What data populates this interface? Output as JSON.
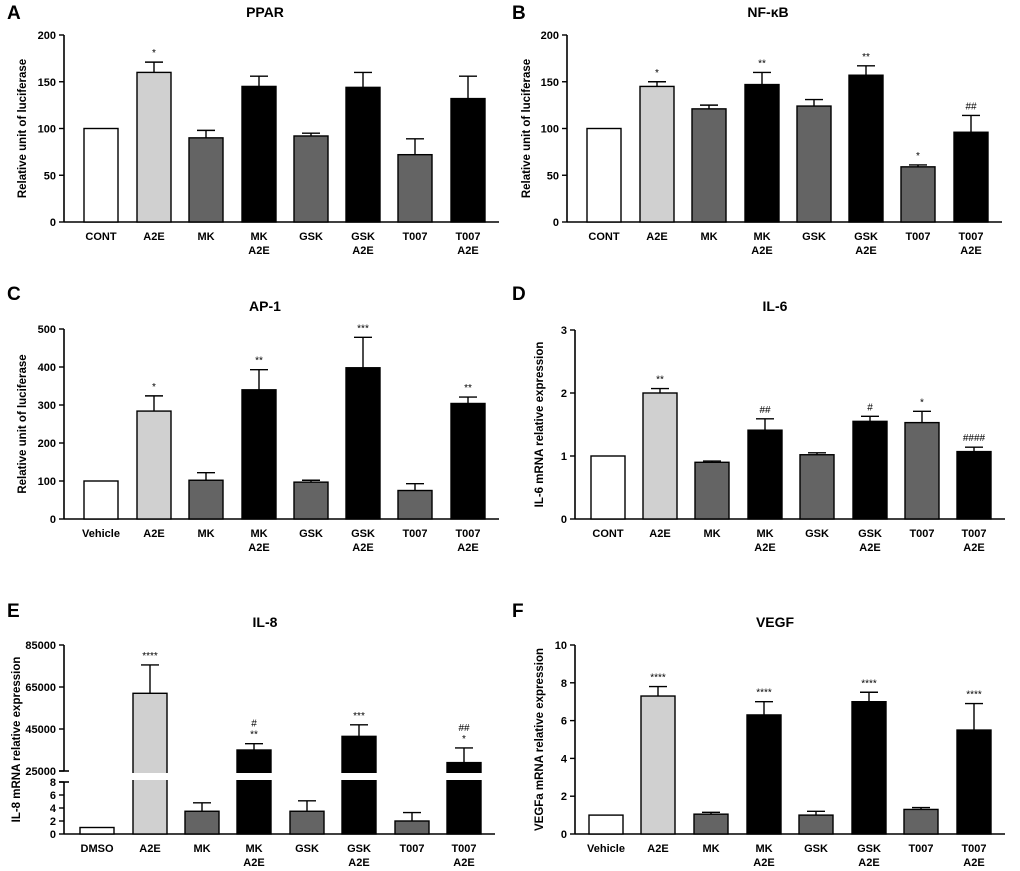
{
  "chart_data": [
    {
      "panel": "A",
      "type": "bar",
      "title": "PPAR",
      "ylabel": "Relative unit of luciferase",
      "ylim": [
        0,
        200
      ],
      "yticks": [
        0,
        50,
        100,
        150,
        200
      ],
      "categories": [
        "CONT",
        "A2E",
        "MK",
        "MK\nA2E",
        "GSK",
        "GSK\nA2E",
        "T007",
        "T007\nA2E"
      ],
      "values": [
        100,
        160,
        90,
        145,
        92,
        144,
        72,
        132
      ],
      "errors": [
        0,
        11,
        8,
        11,
        3,
        16,
        17,
        24
      ],
      "annotations": [
        "",
        "*",
        "",
        "",
        "",
        "",
        "",
        ""
      ],
      "colors": [
        "#ffffff",
        "#d0d0d0",
        "#646464",
        "#000000",
        "#646464",
        "#000000",
        "#646464",
        "#000000"
      ]
    },
    {
      "panel": "B",
      "type": "bar",
      "title": "NF-κB",
      "ylabel": "Relative unit of luciferase",
      "ylim": [
        0,
        200
      ],
      "yticks": [
        0,
        50,
        100,
        150,
        200
      ],
      "categories": [
        "CONT",
        "A2E",
        "MK",
        "MK\nA2E",
        "GSK",
        "GSK\nA2E",
        "T007",
        "T007\nA2E"
      ],
      "values": [
        100,
        145,
        121,
        147,
        124,
        157,
        59,
        96
      ],
      "errors": [
        0,
        5,
        4,
        13,
        7,
        10,
        2,
        18
      ],
      "annotations": [
        "",
        "*",
        "",
        "**",
        "",
        "**",
        "*",
        "##"
      ],
      "colors": [
        "#ffffff",
        "#d0d0d0",
        "#646464",
        "#000000",
        "#646464",
        "#000000",
        "#646464",
        "#000000"
      ]
    },
    {
      "panel": "C",
      "type": "bar",
      "title": "AP-1",
      "ylabel": "Relative unit of luciferase",
      "ylim": [
        0,
        500
      ],
      "yticks": [
        0,
        100,
        200,
        300,
        400,
        500
      ],
      "categories": [
        "Vehicle",
        "A2E",
        "MK",
        "MK\nA2E",
        "GSK",
        "GSK\nA2E",
        "T007",
        "T007\nA2E"
      ],
      "values": [
        100,
        284,
        102,
        340,
        97,
        398,
        75,
        304
      ],
      "errors": [
        0,
        40,
        20,
        53,
        5,
        80,
        18,
        17
      ],
      "annotations": [
        "",
        "*",
        "",
        "**",
        "",
        "***",
        "",
        "**"
      ],
      "colors": [
        "#ffffff",
        "#d0d0d0",
        "#646464",
        "#000000",
        "#646464",
        "#000000",
        "#646464",
        "#000000"
      ]
    },
    {
      "panel": "D",
      "type": "bar",
      "title": "IL-6",
      "ylabel": "IL-6 mRNA relative expression",
      "ylim": [
        0,
        3
      ],
      "yticks": [
        0,
        1,
        2,
        3
      ],
      "categories": [
        "CONT",
        "A2E",
        "MK",
        "MK\nA2E",
        "GSK",
        "GSK\nA2E",
        "T007",
        "T007\nA2E"
      ],
      "values": [
        1.0,
        2.0,
        0.9,
        1.41,
        1.02,
        1.55,
        1.53,
        1.07
      ],
      "errors": [
        0,
        0.07,
        0.02,
        0.18,
        0.03,
        0.08,
        0.18,
        0.07
      ],
      "annotations": [
        "",
        "**",
        "",
        "##",
        "",
        "#",
        "*",
        "####"
      ],
      "colors": [
        "#ffffff",
        "#d0d0d0",
        "#646464",
        "#000000",
        "#646464",
        "#000000",
        "#646464",
        "#000000"
      ]
    },
    {
      "panel": "E",
      "type": "bar",
      "title": "IL-8",
      "ylabel": "IL-8 mRNA relative expression",
      "axis_break": {
        "lower_range": [
          0,
          8
        ],
        "upper_range": [
          25000,
          85000
        ]
      },
      "lower_yticks": [
        0,
        2,
        4,
        6,
        8
      ],
      "upper_yticks": [
        25000,
        45000,
        65000,
        85000
      ],
      "categories": [
        "DMSO",
        "A2E",
        "MK",
        "MK\nA2E",
        "GSK",
        "GSK\nA2E",
        "T007",
        "T007\nA2E"
      ],
      "values": [
        1,
        62000,
        3.5,
        35000,
        3.5,
        41500,
        2,
        29000
      ],
      "errors": [
        0,
        13500,
        1.3,
        3000,
        1.6,
        5500,
        1.3,
        7000
      ],
      "annotations": [
        "",
        "****",
        "",
        "#\n**",
        "",
        "***",
        "",
        "##\n*"
      ],
      "colors": [
        "#ffffff",
        "#d0d0d0",
        "#646464",
        "#000000",
        "#646464",
        "#000000",
        "#646464",
        "#000000"
      ]
    },
    {
      "panel": "F",
      "type": "bar",
      "title": "VEGF",
      "ylabel": "VEGFa mRNA relative expression",
      "ylim": [
        0,
        10
      ],
      "yticks": [
        0,
        2,
        4,
        6,
        8,
        10
      ],
      "categories": [
        "Vehicle",
        "A2E",
        "MK",
        "MK\nA2E",
        "GSK",
        "GSK\nA2E",
        "T007",
        "T007\nA2E"
      ],
      "values": [
        1.0,
        7.3,
        1.05,
        6.3,
        1.0,
        7.0,
        1.3,
        5.5
      ],
      "errors": [
        0,
        0.5,
        0.1,
        0.7,
        0.2,
        0.5,
        0.1,
        1.4
      ],
      "annotations": [
        "",
        "****",
        "",
        "****",
        "",
        "****",
        "",
        "****"
      ],
      "colors": [
        "#ffffff",
        "#d0d0d0",
        "#646464",
        "#000000",
        "#646464",
        "#000000",
        "#646464",
        "#000000"
      ]
    }
  ]
}
